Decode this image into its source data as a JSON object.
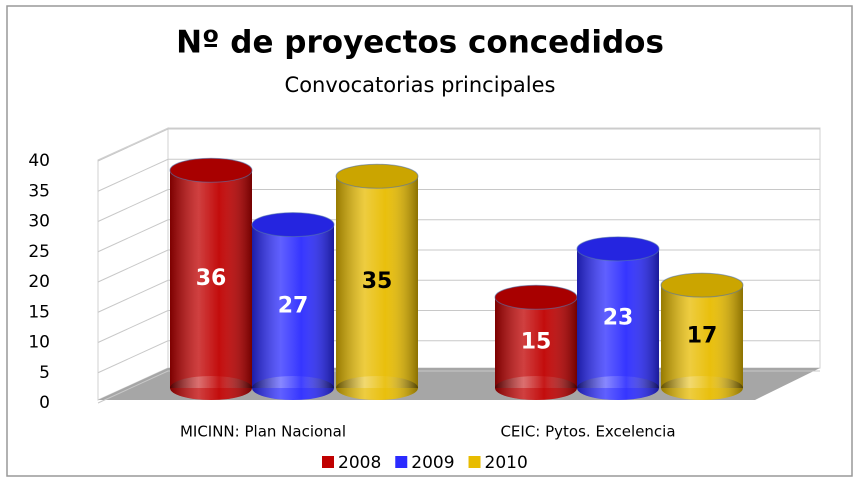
{
  "chart_data": {
    "type": "bar3d",
    "title": "Nº de proyectos concedidos",
    "subtitle": "Convocatorias principales",
    "categories": [
      "MICINN: Plan Nacional",
      "CEIC: Pytos. Excelencia"
    ],
    "series": [
      {
        "name": "2008",
        "color": "#c00000",
        "values": [
          36,
          15
        ]
      },
      {
        "name": "2009",
        "color": "#2b2bff",
        "values": [
          27,
          23
        ]
      },
      {
        "name": "2010",
        "color": "#e8bc00",
        "values": [
          35,
          17
        ]
      }
    ],
    "ylim": [
      0,
      40
    ],
    "yticks": [
      0,
      5,
      10,
      15,
      20,
      25,
      30,
      35,
      40
    ],
    "grid": true,
    "legend": "bottom"
  }
}
